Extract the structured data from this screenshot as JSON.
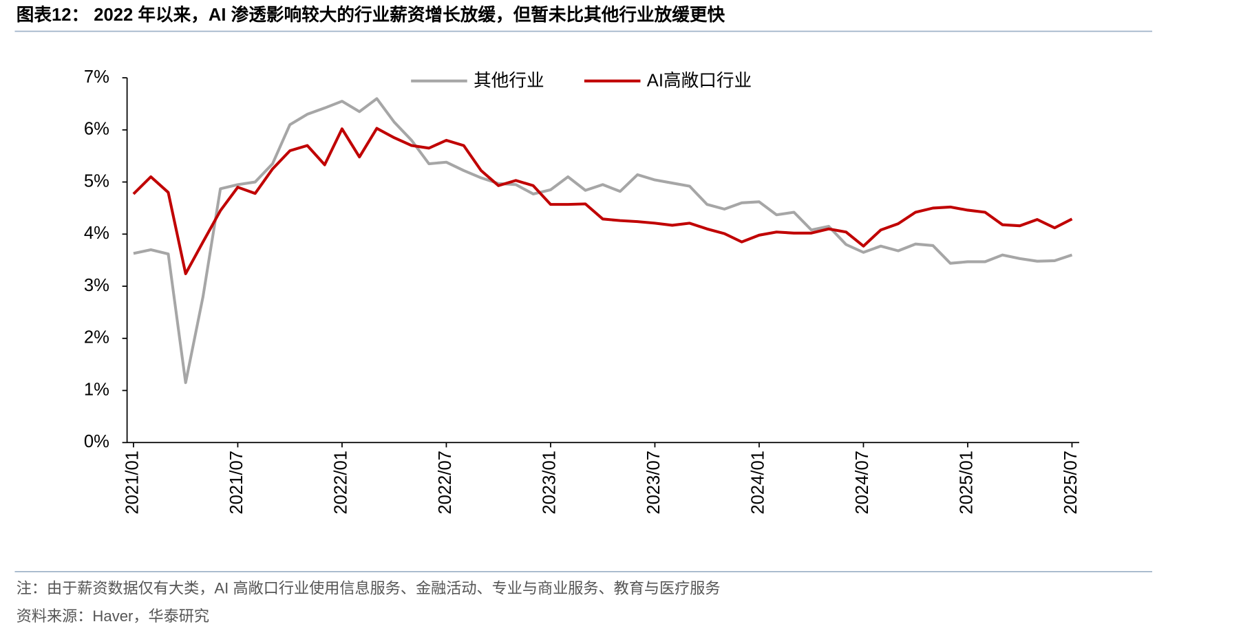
{
  "chart_data": {
    "type": "line",
    "title": "图表12： 2022 年以来，AI 渗透影响较大的行业薪资增长放缓，但暂未比其他行业放缓更快",
    "note": "注：由于薪资数据仅有大类，AI 高敞口行业使用信息服务、金融活动、专业与商业服务、教育与医疗服务",
    "source": "资料来源：Haver，华泰研究",
    "categories": [
      "2021/01",
      null,
      null,
      null,
      null,
      null,
      "2021/07",
      null,
      null,
      null,
      null,
      null,
      "2022/01",
      null,
      null,
      null,
      null,
      null,
      "2022/07",
      null,
      null,
      null,
      null,
      null,
      "2023/01",
      null,
      null,
      null,
      null,
      null,
      "2023/07",
      null,
      null,
      null,
      null,
      null,
      "2024/01",
      null,
      null,
      null,
      null,
      null,
      "2024/07",
      null,
      null,
      null,
      null,
      null,
      "2025/01",
      null,
      null,
      null,
      null,
      null,
      "2025/07"
    ],
    "series": [
      {
        "name": "其他行业",
        "color": "#a6a6a6",
        "values": [
          3.63,
          3.7,
          3.62,
          1.15,
          2.8,
          4.87,
          4.95,
          5.0,
          5.35,
          6.1,
          6.3,
          6.42,
          6.55,
          6.35,
          6.6,
          6.15,
          5.8,
          5.35,
          5.38,
          5.22,
          5.08,
          4.97,
          4.95,
          4.77,
          4.85,
          5.1,
          4.84,
          4.95,
          4.82,
          5.14,
          5.04,
          4.98,
          4.92,
          4.57,
          4.48,
          4.6,
          4.62,
          4.37,
          4.42,
          4.08,
          4.15,
          3.8,
          3.65,
          3.77,
          3.68,
          3.81,
          3.78,
          3.44,
          3.47,
          3.47,
          3.6,
          3.53,
          3.48,
          3.49,
          3.6
        ]
      },
      {
        "name": "AI高敞口行业",
        "color": "#c00000",
        "values": [
          4.77,
          5.1,
          4.8,
          3.24,
          3.85,
          4.45,
          4.9,
          4.78,
          5.25,
          5.6,
          5.7,
          5.33,
          6.02,
          5.48,
          6.03,
          5.85,
          5.7,
          5.65,
          5.8,
          5.7,
          5.22,
          4.93,
          5.03,
          4.93,
          4.57,
          4.57,
          4.58,
          4.29,
          4.26,
          4.24,
          4.21,
          4.17,
          4.21,
          4.1,
          4.01,
          3.85,
          3.98,
          4.04,
          4.02,
          4.02,
          4.1,
          4.04,
          3.77,
          4.08,
          4.2,
          4.42,
          4.5,
          4.52,
          4.46,
          4.42,
          4.18,
          4.16,
          4.28,
          4.12,
          4.29
        ]
      }
    ],
    "ylim": [
      0,
      7
    ],
    "yticks": [
      {
        "value": 0,
        "label": "0%"
      },
      {
        "value": 1,
        "label": "1%"
      },
      {
        "value": 2,
        "label": "2%"
      },
      {
        "value": 3,
        "label": "3%"
      },
      {
        "value": 4,
        "label": "4%"
      },
      {
        "value": 5,
        "label": "5%"
      },
      {
        "value": 6,
        "label": "6%"
      },
      {
        "value": 7,
        "label": "7%"
      }
    ],
    "grid": false
  }
}
